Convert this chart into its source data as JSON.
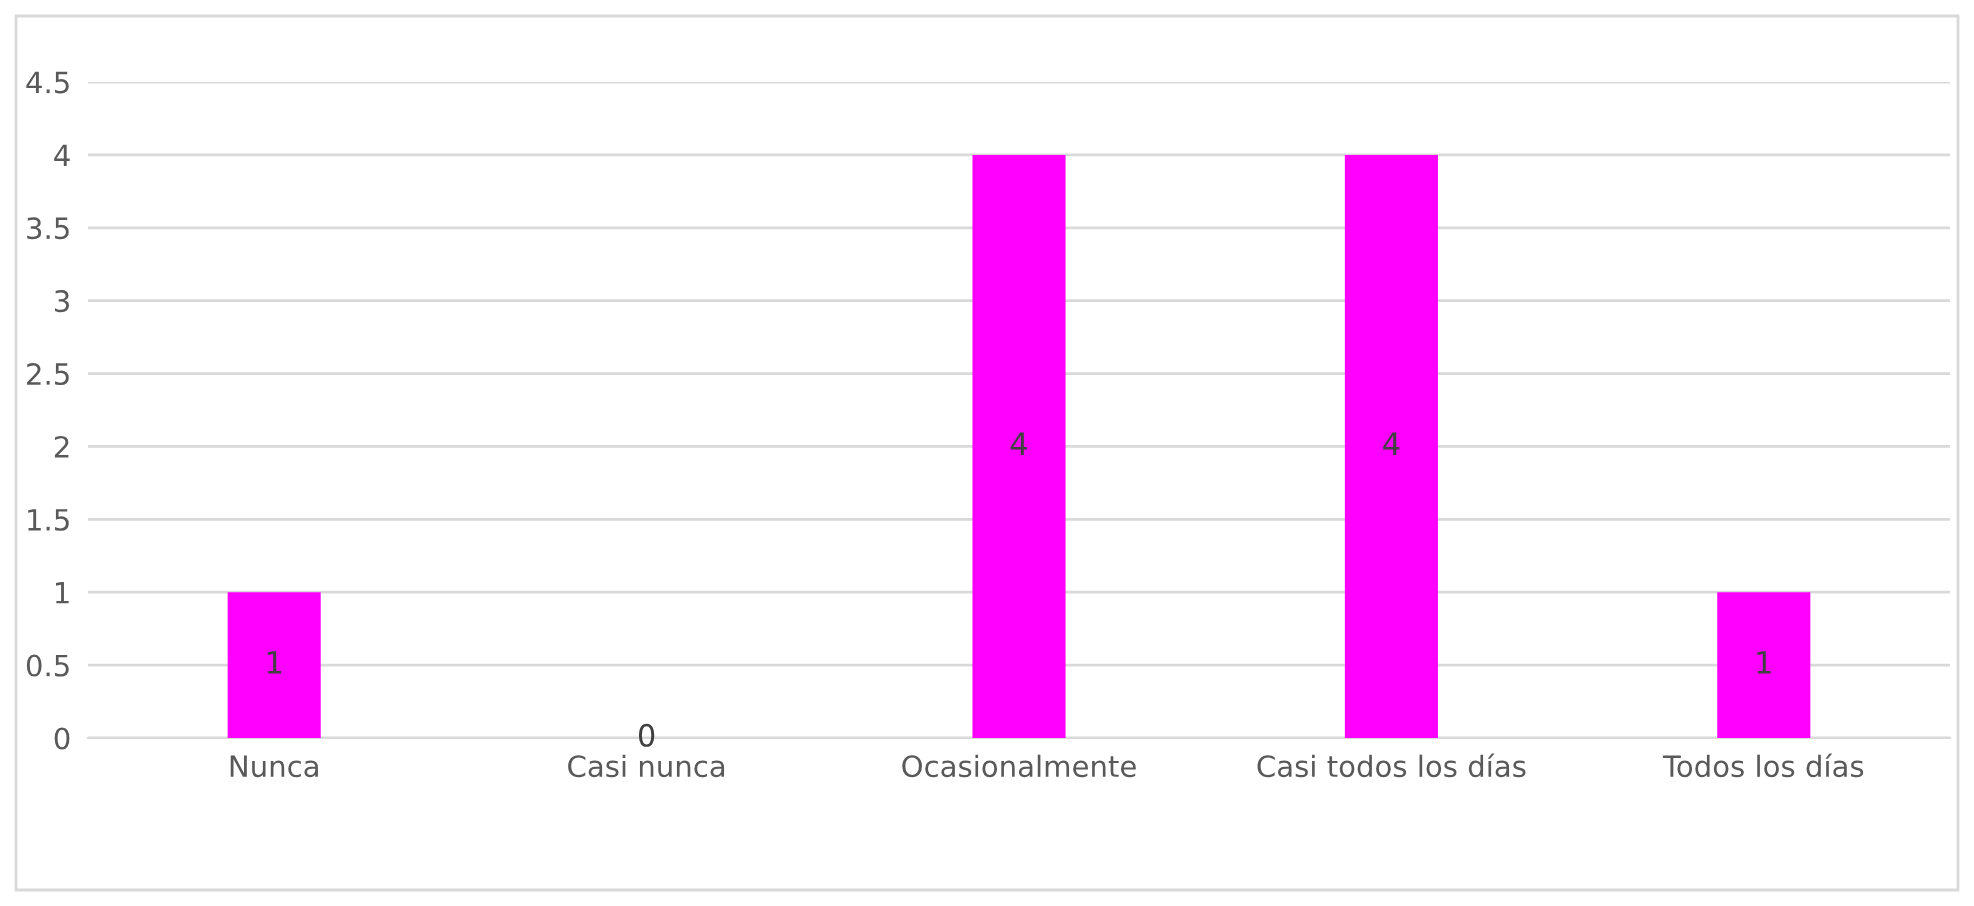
{
  "chart_data": {
    "type": "bar",
    "categories": [
      "Nunca",
      "Casi nunca",
      "Ocasionalmente",
      "Casi todos los días",
      "Todos los días"
    ],
    "values": [
      1,
      0,
      4,
      4,
      1
    ],
    "color": "#ff00ff",
    "ylim": [
      0,
      4.5
    ],
    "yticks": [
      0,
      0.5,
      1,
      1.5,
      2,
      2.5,
      3,
      3.5,
      4,
      4.5
    ],
    "grid": "y",
    "data_labels": true
  }
}
